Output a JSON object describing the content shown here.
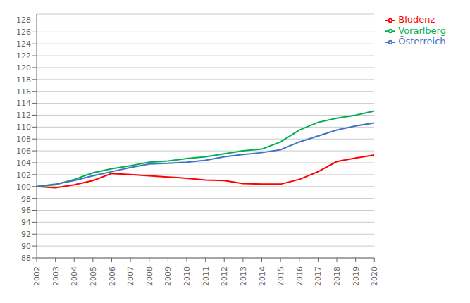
{
  "chart_data": {
    "type": "line",
    "x": [
      2002,
      2003,
      2004,
      2005,
      2006,
      2007,
      2008,
      2009,
      2010,
      2011,
      2012,
      2013,
      2014,
      2015,
      2016,
      2017,
      2018,
      2019,
      2020
    ],
    "series": [
      {
        "name": "Bludenz",
        "color": "#ff0000",
        "values": [
          100.0,
          99.8,
          100.3,
          101.0,
          102.2,
          102.0,
          101.8,
          101.6,
          101.4,
          101.1,
          101.0,
          100.5,
          100.4,
          100.4,
          101.2,
          102.5,
          104.2,
          104.8,
          105.3
        ]
      },
      {
        "name": "Vorarlberg",
        "color": "#00b050",
        "values": [
          100.0,
          100.3,
          101.2,
          102.3,
          103.0,
          103.5,
          104.1,
          104.3,
          104.7,
          105.0,
          105.5,
          106.0,
          106.3,
          107.5,
          109.5,
          110.8,
          111.5,
          112.0,
          112.7
        ]
      },
      {
        "name": "Österreich",
        "color": "#4472c4",
        "values": [
          100.0,
          100.4,
          101.0,
          101.8,
          102.5,
          103.2,
          103.8,
          103.9,
          104.1,
          104.4,
          105.0,
          105.4,
          105.7,
          106.2,
          107.5,
          108.5,
          109.5,
          110.2,
          110.7
        ]
      }
    ],
    "xlim": [
      2002,
      2020
    ],
    "xticks": [
      2002,
      2003,
      2004,
      2005,
      2006,
      2007,
      2008,
      2009,
      2010,
      2011,
      2012,
      2013,
      2014,
      2015,
      2016,
      2017,
      2018,
      2019,
      2020
    ],
    "ylim": [
      88,
      129
    ],
    "yticks": [
      88,
      90,
      92,
      94,
      96,
      98,
      100,
      102,
      104,
      106,
      108,
      110,
      112,
      114,
      116,
      118,
      120,
      122,
      124,
      126,
      128
    ],
    "grid": "y",
    "legend": "right"
  }
}
